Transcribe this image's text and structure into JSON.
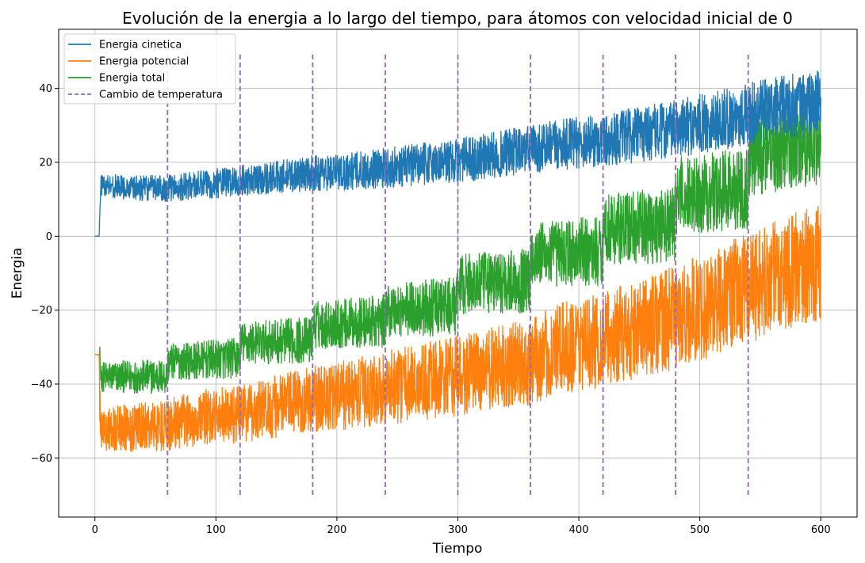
{
  "chart_data": {
    "type": "line",
    "title": "Evolución de la energia a lo largo del tiempo, para átomos con velocidad inicial de 0",
    "xlabel": "Tiempo",
    "ylabel": "Energia",
    "xlim": [
      -30,
      630
    ],
    "ylim": [
      -76,
      56
    ],
    "xticks": [
      0,
      100,
      200,
      300,
      400,
      500,
      600
    ],
    "yticks": [
      -60,
      -40,
      -20,
      0,
      20,
      40
    ],
    "grid": true,
    "legend_position": "top-left",
    "series": [
      {
        "name": "Energia cinetica",
        "color": "#1f77b4",
        "style": "solid",
        "points": [
          [
            0,
            0
          ],
          [
            3.5,
            0
          ],
          [
            4,
            8
          ],
          [
            5,
            14
          ],
          [
            30,
            13
          ],
          [
            60,
            13
          ],
          [
            90,
            14
          ],
          [
            120,
            15
          ],
          [
            150,
            16
          ],
          [
            180,
            17
          ],
          [
            210,
            17.5
          ],
          [
            240,
            18.5
          ],
          [
            270,
            19.5
          ],
          [
            300,
            20.5
          ],
          [
            330,
            22
          ],
          [
            360,
            23.5
          ],
          [
            390,
            25
          ],
          [
            420,
            26
          ],
          [
            450,
            27.5
          ],
          [
            480,
            29
          ],
          [
            510,
            31
          ],
          [
            540,
            33
          ],
          [
            570,
            35
          ],
          [
            600,
            36
          ]
        ]
      },
      {
        "name": "Energia potencial",
        "color": "#ff7f0e",
        "style": "solid",
        "points": [
          [
            0,
            -32
          ],
          [
            3.5,
            -32
          ],
          [
            4,
            -45
          ],
          [
            5,
            -52
          ],
          [
            30,
            -52
          ],
          [
            60,
            -51
          ],
          [
            90,
            -49
          ],
          [
            120,
            -48
          ],
          [
            150,
            -46
          ],
          [
            180,
            -44
          ],
          [
            210,
            -43
          ],
          [
            240,
            -41
          ],
          [
            270,
            -39.5
          ],
          [
            300,
            -38
          ],
          [
            330,
            -36
          ],
          [
            360,
            -34
          ],
          [
            390,
            -30
          ],
          [
            420,
            -28
          ],
          [
            450,
            -25
          ],
          [
            480,
            -22
          ],
          [
            510,
            -18
          ],
          [
            540,
            -14
          ],
          [
            570,
            -10
          ],
          [
            600,
            -7
          ]
        ]
      },
      {
        "name": "Energia total",
        "color": "#2ca02c",
        "style": "solid",
        "points": [
          [
            0,
            -32
          ],
          [
            3.5,
            -32
          ],
          [
            5,
            -38
          ],
          [
            30,
            -38
          ],
          [
            59,
            -38
          ],
          [
            61,
            -34
          ],
          [
            119,
            -33
          ],
          [
            121,
            -29
          ],
          [
            179,
            -28
          ],
          [
            181,
            -24
          ],
          [
            239,
            -23
          ],
          [
            241,
            -20
          ],
          [
            299,
            -19
          ],
          [
            301,
            -13
          ],
          [
            359,
            -12
          ],
          [
            361,
            -5
          ],
          [
            419,
            -4
          ],
          [
            421,
            2
          ],
          [
            479,
            3
          ],
          [
            481,
            11
          ],
          [
            539,
            13
          ],
          [
            541,
            22
          ],
          [
            570,
            24
          ],
          [
            600,
            26
          ]
        ]
      },
      {
        "name": "Cambio de temperatura",
        "color": "#9467bd",
        "style": "dashed",
        "x": [
          60,
          120,
          180,
          240,
          300,
          360,
          420,
          480,
          540
        ],
        "ymin": -70,
        "ymax": 50
      }
    ]
  }
}
